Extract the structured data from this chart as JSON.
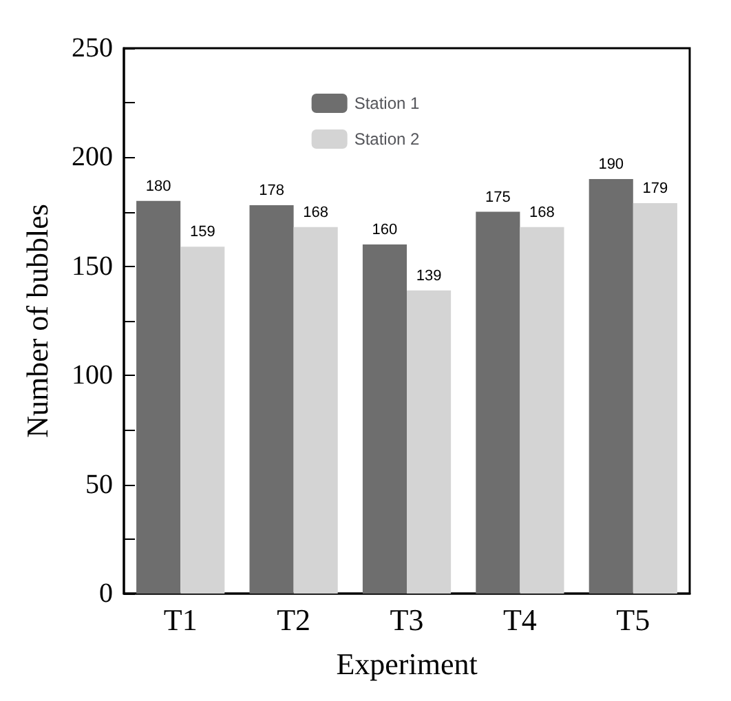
{
  "chart_data": {
    "type": "bar",
    "xlabel": "Experiment",
    "ylabel": "Number of bubbles",
    "categories": [
      "T1",
      "T2",
      "T3",
      "T4",
      "T5"
    ],
    "series": [
      {
        "name": "Station 1",
        "color": "#6e6e6e",
        "values": [
          180,
          178,
          160,
          175,
          190
        ]
      },
      {
        "name": "Station 2",
        "color": "#d4d4d4",
        "values": [
          159,
          168,
          139,
          168,
          179
        ]
      }
    ],
    "ylim": [
      0,
      250
    ],
    "yticks": [
      0,
      {
        "value": 25,
        "label": null
      },
      50,
      {
        "value": 75,
        "label": null
      },
      100,
      {
        "value": 125,
        "label": null
      },
      150,
      {
        "value": 175,
        "label": null
      },
      200,
      {
        "value": 225,
        "label": null
      },
      250
    ],
    "data_labels": true,
    "legend": "top",
    "grid": false
  }
}
